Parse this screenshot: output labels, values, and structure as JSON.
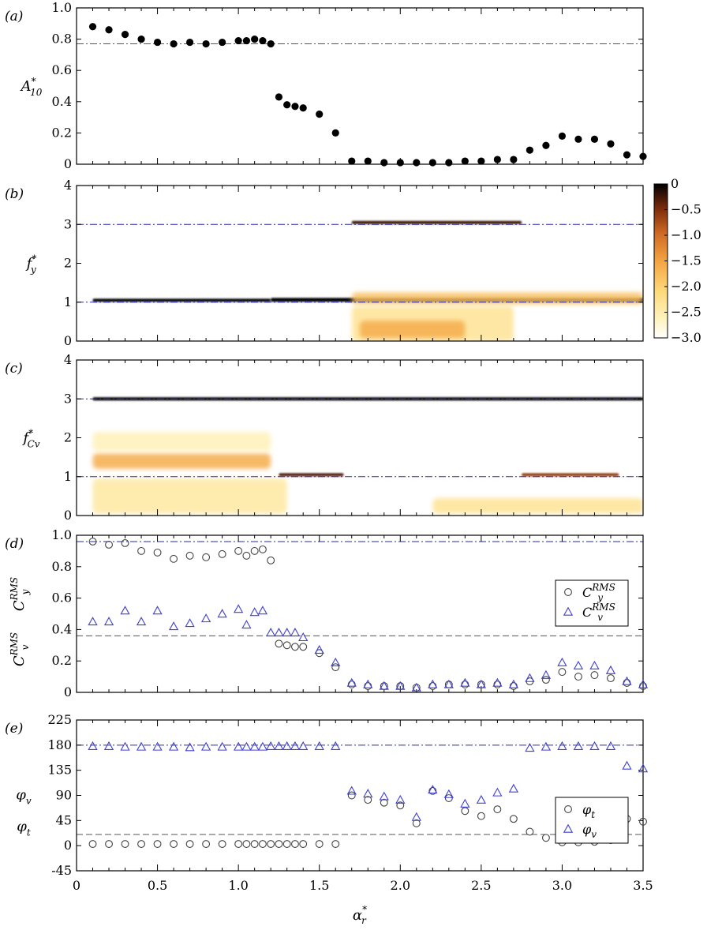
{
  "colors": {
    "axis": "#000000",
    "ref_black": "#555555",
    "ref_blue": "#2a2aa8",
    "marker_black": "#000000",
    "marker_open_black": "#444444",
    "marker_blue": "#4040d0",
    "colormap": [
      "#ffffff",
      "#fff6c8",
      "#fde38a",
      "#f6b04a",
      "#d9762a",
      "#9a3b13",
      "#3a0c02",
      "#000000"
    ]
  },
  "x_axis": {
    "label": "α",
    "label_sup": "*",
    "label_sub": "r",
    "ticks": [
      0,
      0.5,
      1.0,
      1.5,
      2.0,
      2.5,
      3.0,
      3.5
    ],
    "tick_labels": [
      "0",
      "0.5",
      "1.0",
      "1.5",
      "2.0",
      "2.5",
      "3.0",
      "3.5"
    ],
    "range": [
      0,
      3.5
    ]
  },
  "colorbar": {
    "ticks": [
      0,
      -0.5,
      -1.0,
      -1.5,
      -2.0,
      -2.5,
      -3.0
    ],
    "tick_labels": [
      "0",
      "−0.5",
      "−1.0",
      "−1.5",
      "−2.0",
      "−2.5",
      "−3.0"
    ],
    "range": [
      -3.0,
      0
    ]
  },
  "chart_data": [
    {
      "panel": "(a)",
      "type": "scatter",
      "ylabel": "A",
      "ylabel_sup": "*",
      "ylabel_sub": "10",
      "ylim": [
        0,
        1.0
      ],
      "yticks": [
        0,
        0.2,
        0.4,
        0.6,
        0.8,
        1.0
      ],
      "ytick_labels": [
        "0",
        "0.2",
        "0.4",
        "0.6",
        "0.8",
        "1.0"
      ],
      "reference_lines": [
        {
          "y": 0.77,
          "style": "dash-dot",
          "color": "black"
        }
      ],
      "series": [
        {
          "marker": "filled-circle",
          "x": [
            0.1,
            0.2,
            0.3,
            0.4,
            0.5,
            0.6,
            0.7,
            0.8,
            0.9,
            1.0,
            1.05,
            1.1,
            1.15,
            1.2,
            1.25,
            1.3,
            1.35,
            1.4,
            1.5,
            1.6,
            1.7,
            1.8,
            1.9,
            2.0,
            2.1,
            2.2,
            2.3,
            2.4,
            2.5,
            2.6,
            2.7,
            2.8,
            2.9,
            3.0,
            3.1,
            3.2,
            3.3,
            3.4,
            3.5
          ],
          "y": [
            0.88,
            0.86,
            0.83,
            0.8,
            0.78,
            0.77,
            0.78,
            0.77,
            0.78,
            0.79,
            0.79,
            0.8,
            0.79,
            0.77,
            0.43,
            0.38,
            0.37,
            0.36,
            0.32,
            0.2,
            0.02,
            0.02,
            0.01,
            0.01,
            0.01,
            0.01,
            0.01,
            0.02,
            0.02,
            0.03,
            0.03,
            0.09,
            0.12,
            0.18,
            0.16,
            0.16,
            0.13,
            0.06,
            0.05
          ]
        }
      ]
    },
    {
      "panel": "(b)",
      "type": "heatmap",
      "ylabel": "f",
      "ylabel_sup": "*",
      "ylabel_sub": "y",
      "ylim": [
        0,
        4
      ],
      "yticks": [
        0,
        1,
        2,
        3,
        4
      ],
      "ytick_labels": [
        "0",
        "1",
        "2",
        "3",
        "4"
      ],
      "reference_lines": [
        {
          "y": 1,
          "style": "dash-dot",
          "color": "blue"
        },
        {
          "y": 3,
          "style": "dash-dot",
          "color": "blue"
        }
      ],
      "bands": [
        {
          "x0": 0.1,
          "x1": 1.2,
          "y": 1.05,
          "thickness": 0.08,
          "level": 0.0
        },
        {
          "x0": 1.2,
          "x1": 3.5,
          "y": 1.06,
          "thickness": 0.1,
          "level": 0.0
        },
        {
          "x0": 1.7,
          "x1": 3.5,
          "y": 1.1,
          "thickness": 0.3,
          "level": -1.8
        },
        {
          "x0": 1.7,
          "x1": 2.75,
          "y": 3.05,
          "thickness": 0.08,
          "level": -0.2
        },
        {
          "x0": 1.7,
          "x1": 2.7,
          "y": 0.45,
          "thickness": 0.9,
          "level": -2.3
        },
        {
          "x0": 1.75,
          "x1": 2.4,
          "y": 0.3,
          "thickness": 0.45,
          "level": -1.6
        }
      ]
    },
    {
      "panel": "(c)",
      "type": "heatmap",
      "ylabel": "f",
      "ylabel_sup": "*",
      "ylabel_sub": "Cv",
      "ylim": [
        0,
        4
      ],
      "yticks": [
        0,
        1,
        2,
        3,
        4
      ],
      "ytick_labels": [
        "0",
        "1",
        "2",
        "3",
        "4"
      ],
      "reference_lines": [
        {
          "y": 1,
          "style": "dash-dot",
          "color": "blue"
        },
        {
          "y": 3,
          "style": "dash-dot",
          "color": "blue"
        }
      ],
      "bands": [
        {
          "x0": 0.1,
          "x1": 3.5,
          "y": 3.0,
          "thickness": 0.08,
          "level": 0.0
        },
        {
          "x0": 0.1,
          "x1": 1.2,
          "y": 1.4,
          "thickness": 0.4,
          "level": -1.6
        },
        {
          "x0": 0.1,
          "x1": 1.2,
          "y": 1.9,
          "thickness": 0.5,
          "level": -2.6
        },
        {
          "x0": 0.1,
          "x1": 1.3,
          "y": 0.5,
          "thickness": 0.9,
          "level": -2.4
        },
        {
          "x0": 1.25,
          "x1": 1.65,
          "y": 1.05,
          "thickness": 0.08,
          "level": -0.3
        },
        {
          "x0": 2.75,
          "x1": 3.35,
          "y": 1.05,
          "thickness": 0.08,
          "level": -0.6
        },
        {
          "x0": 2.2,
          "x1": 3.5,
          "y": 0.25,
          "thickness": 0.4,
          "level": -2.3
        }
      ]
    },
    {
      "panel": "(d)",
      "type": "scatter",
      "ylabel": "C",
      "ylabel_sup": "RMS",
      "ylabel_sub": "v",
      "ylabel2": "C",
      "ylabel2_sup": "RMS",
      "ylabel2_sub": "y",
      "ylim": [
        0,
        1.0
      ],
      "yticks": [
        0,
        0.2,
        0.4,
        0.6,
        0.8,
        1.0
      ],
      "ytick_labels": [
        "0",
        "0.2",
        "0.4",
        "0.6",
        "0.8",
        "1.0"
      ],
      "reference_lines": [
        {
          "y": 0.96,
          "style": "dash-dot",
          "color": "blue"
        },
        {
          "y": 0.36,
          "style": "dash",
          "color": "black"
        }
      ],
      "legend": {
        "position": "right"
      },
      "series": [
        {
          "name": "C",
          "name_sup": "RMS",
          "name_sub": "y",
          "marker": "open-circle",
          "x": [
            0.1,
            0.2,
            0.3,
            0.4,
            0.5,
            0.6,
            0.7,
            0.8,
            0.9,
            1.0,
            1.05,
            1.1,
            1.15,
            1.2,
            1.25,
            1.3,
            1.35,
            1.4,
            1.5,
            1.6,
            1.7,
            1.8,
            1.9,
            2.0,
            2.1,
            2.2,
            2.3,
            2.4,
            2.5,
            2.6,
            2.7,
            2.8,
            2.9,
            3.0,
            3.1,
            3.2,
            3.3,
            3.4,
            3.5
          ],
          "y": [
            0.96,
            0.94,
            0.95,
            0.9,
            0.89,
            0.85,
            0.87,
            0.86,
            0.88,
            0.9,
            0.87,
            0.9,
            0.91,
            0.84,
            0.31,
            0.3,
            0.29,
            0.29,
            0.25,
            0.16,
            0.05,
            0.04,
            0.04,
            0.04,
            0.03,
            0.04,
            0.05,
            0.05,
            0.05,
            0.05,
            0.04,
            0.07,
            0.08,
            0.13,
            0.1,
            0.11,
            0.09,
            0.06,
            0.04
          ]
        },
        {
          "name": "C",
          "name_sup": "RMS",
          "name_sub": "v",
          "marker": "open-triangle",
          "x": [
            0.1,
            0.2,
            0.3,
            0.4,
            0.5,
            0.6,
            0.7,
            0.8,
            0.9,
            1.0,
            1.05,
            1.1,
            1.15,
            1.2,
            1.25,
            1.3,
            1.35,
            1.4,
            1.5,
            1.6,
            1.7,
            1.8,
            1.9,
            2.0,
            2.1,
            2.2,
            2.3,
            2.4,
            2.5,
            2.6,
            2.7,
            2.8,
            2.9,
            3.0,
            3.1,
            3.2,
            3.3,
            3.4,
            3.5
          ],
          "y": [
            0.45,
            0.45,
            0.52,
            0.45,
            0.52,
            0.42,
            0.44,
            0.47,
            0.5,
            0.53,
            0.43,
            0.51,
            0.52,
            0.38,
            0.38,
            0.38,
            0.38,
            0.35,
            0.27,
            0.19,
            0.06,
            0.05,
            0.04,
            0.04,
            0.03,
            0.05,
            0.05,
            0.06,
            0.05,
            0.06,
            0.05,
            0.09,
            0.11,
            0.19,
            0.17,
            0.17,
            0.14,
            0.07,
            0.05
          ]
        }
      ]
    },
    {
      "panel": "(e)",
      "type": "scatter",
      "ylabel": "φ",
      "ylabel_sub": "t",
      "ylabel2": "φ",
      "ylabel2_sub": "v",
      "ylim": [
        -45,
        225
      ],
      "yticks": [
        -45,
        0,
        45,
        90,
        135,
        180,
        225
      ],
      "ytick_labels": [
        "-45",
        "0",
        "45",
        "90",
        "135",
        "180",
        "225"
      ],
      "reference_lines": [
        {
          "y": 180,
          "style": "dash-dot",
          "color": "blue"
        },
        {
          "y": 20,
          "style": "dash",
          "color": "black"
        }
      ],
      "legend": {
        "position": "right"
      },
      "series": [
        {
          "name": "φ",
          "name_sub": "t",
          "marker": "open-circle",
          "x": [
            0.1,
            0.2,
            0.3,
            0.4,
            0.5,
            0.6,
            0.7,
            0.8,
            0.9,
            1.0,
            1.05,
            1.1,
            1.15,
            1.2,
            1.25,
            1.3,
            1.35,
            1.4,
            1.5,
            1.6,
            1.7,
            1.8,
            1.9,
            2.0,
            2.1,
            2.2,
            2.3,
            2.4,
            2.5,
            2.6,
            2.7,
            2.8,
            2.9,
            3.0,
            3.1,
            3.2,
            3.3,
            3.4,
            3.5
          ],
          "y": [
            3,
            3,
            3,
            3,
            3,
            3,
            3,
            3,
            3,
            3,
            3,
            3,
            3,
            3,
            3,
            3,
            3,
            3,
            3,
            3,
            90,
            82,
            77,
            72,
            40,
            98,
            85,
            62,
            53,
            65,
            48,
            25,
            14,
            6,
            6,
            7,
            10,
            48,
            43
          ]
        },
        {
          "name": "φ",
          "name_sub": "v",
          "marker": "open-triangle",
          "x": [
            0.1,
            0.2,
            0.3,
            0.4,
            0.5,
            0.6,
            0.7,
            0.8,
            0.9,
            1.0,
            1.05,
            1.1,
            1.15,
            1.2,
            1.25,
            1.3,
            1.35,
            1.4,
            1.5,
            1.6,
            1.7,
            1.8,
            1.9,
            2.0,
            2.1,
            2.2,
            2.3,
            2.4,
            2.5,
            2.6,
            2.7,
            2.8,
            2.9,
            3.0,
            3.1,
            3.2,
            3.3,
            3.4,
            3.5
          ],
          "y": [
            178,
            178,
            177,
            177,
            177,
            177,
            176,
            177,
            177,
            177,
            177,
            177,
            177,
            178,
            178,
            178,
            178,
            178,
            178,
            178,
            98,
            93,
            88,
            82,
            51,
            100,
            92,
            75,
            82,
            95,
            102,
            175,
            177,
            178,
            178,
            178,
            178,
            143,
            138
          ]
        }
      ]
    }
  ]
}
